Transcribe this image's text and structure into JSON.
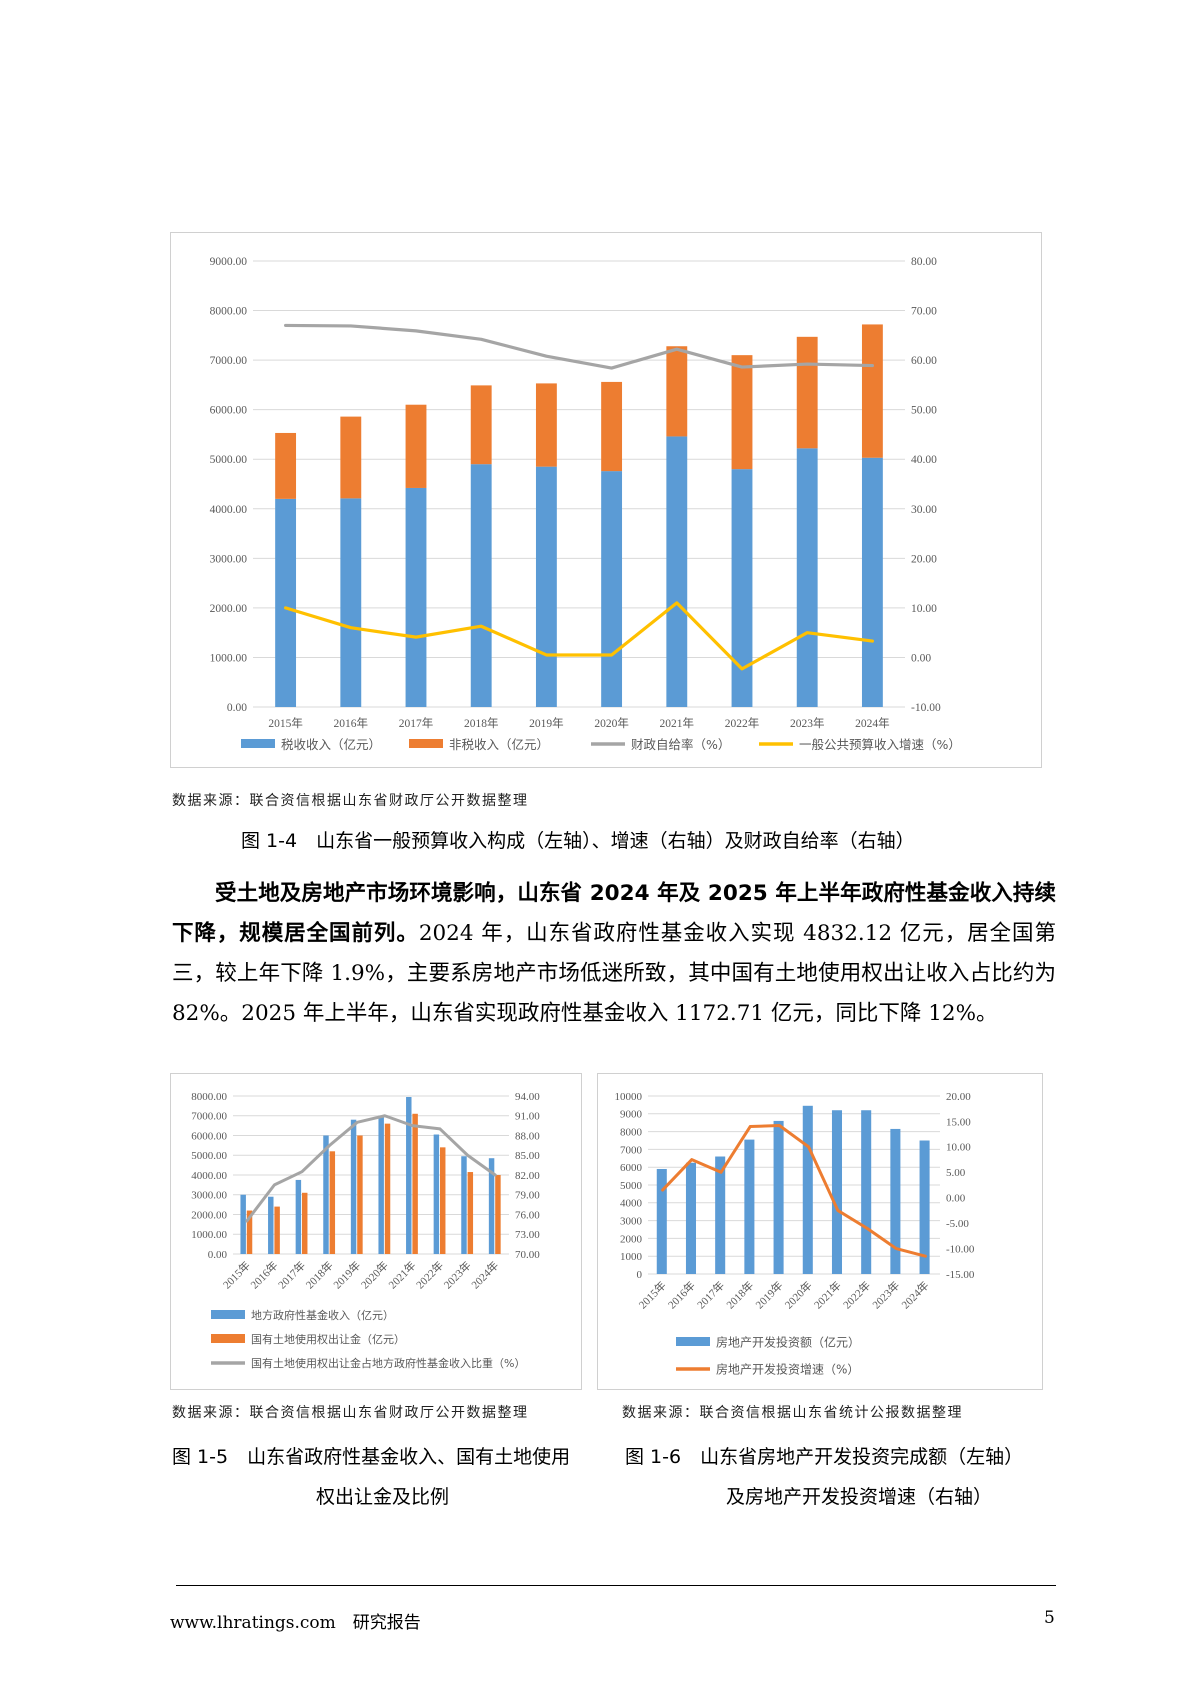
{
  "figure_1_4": {
    "caption": "图 1-4　山东省一般预算收入构成（左轴）、增速（右轴）及财政自给率（右轴）",
    "source": "数据来源：联合资信根据山东省财政厅公开数据整理"
  },
  "figure_1_5": {
    "caption_line1": "图 1-5　山东省政府性基金收入、国有土地使用",
    "caption_line2": "权出让金及比例",
    "source": "数据来源：联合资信根据山东省财政厅公开数据整理"
  },
  "figure_1_6": {
    "caption_line1": "图 1-6　山东省房地产开发投资完成额（左轴）",
    "caption_line2": "及房地产开发投资增速（右轴）",
    "source": "数据来源：联合资信根据山东省统计公报数据整理"
  },
  "paragraph": {
    "bold_lead": "受土地及房地产市场环境影响，山东省 2024 年及 2025 年上半年政府性基金收入持续下降，规模居全国前列。",
    "body": "2024 年，山东省政府性基金收入实现 4832.12 亿元，居全国第三，较上年下降 1.9%，主要系房地产市场低迷所致，其中国有土地使用权出让收入占比约为 82%。2025 年上半年，山东省实现政府性基金收入 1172.71 亿元，同比下降 12%。"
  },
  "footer": {
    "left": "www.lhratings.com　研究报告",
    "page_number": "5"
  },
  "chart_data": [
    {
      "id": "fig-1-4",
      "type": "bar",
      "stacked": true,
      "categories": [
        "2015年",
        "2016年",
        "2017年",
        "2018年",
        "2019年",
        "2020年",
        "2021年",
        "2022年",
        "2023年",
        "2024年"
      ],
      "series": [
        {
          "name": "税收收入（亿元）",
          "axis": "left",
          "kind": "bar",
          "color": "#5b9bd5",
          "values": [
            4200,
            4210,
            4420,
            4900,
            4850,
            4760,
            5460,
            4800,
            5220,
            5030
          ]
        },
        {
          "name": "非税收入（亿元）",
          "axis": "left",
          "kind": "bar",
          "color": "#ed7d31",
          "values": [
            1330,
            1650,
            1680,
            1590,
            1680,
            1800,
            1820,
            2300,
            2250,
            2690
          ]
        },
        {
          "name": "财政自给率（%）",
          "axis": "right",
          "kind": "line",
          "color": "#a5a5a5",
          "values": [
            67.0,
            66.9,
            65.9,
            64.2,
            60.8,
            58.4,
            62.2,
            58.6,
            59.2,
            58.9
          ]
        },
        {
          "name": "一般公共预算收入增速（%）",
          "axis": "right",
          "kind": "line",
          "color": "#ffc000",
          "values": [
            10.0,
            6.0,
            4.1,
            6.3,
            0.5,
            0.5,
            11.0,
            -2.3,
            5.0,
            3.3
          ]
        }
      ],
      "ylim_left": [
        0,
        9000
      ],
      "yticks_left": [
        "0.00",
        "1000.00",
        "2000.00",
        "3000.00",
        "4000.00",
        "5000.00",
        "6000.00",
        "7000.00",
        "8000.00",
        "9000.00"
      ],
      "ylim_right": [
        -10,
        80
      ],
      "yticks_right": [
        "-10.00",
        "0.00",
        "10.00",
        "20.00",
        "30.00",
        "40.00",
        "50.00",
        "60.00",
        "70.00",
        "80.00"
      ],
      "grid": true,
      "legend": "bottom"
    },
    {
      "id": "fig-1-5",
      "type": "bar",
      "categories": [
        "2015年",
        "2016年",
        "2017年",
        "2018年",
        "2019年",
        "2020年",
        "2021年",
        "2022年",
        "2023年",
        "2024年"
      ],
      "series": [
        {
          "name": "地方政府性基金收入（亿元）",
          "axis": "left",
          "kind": "bar",
          "color": "#5b9bd5",
          "values": [
            3000,
            2900,
            3750,
            6000,
            6800,
            7000,
            7950,
            6050,
            4950,
            4850
          ]
        },
        {
          "name": "国有土地使用权出让金（亿元）",
          "axis": "left",
          "kind": "bar",
          "color": "#ed7d31",
          "values": [
            2200,
            2400,
            3100,
            5200,
            6000,
            6600,
            7100,
            5400,
            4150,
            4000
          ]
        },
        {
          "name": "国有土地使用权出让金占地方政府性基金收入比重（%）",
          "axis": "right",
          "kind": "line",
          "color": "#a5a5a5",
          "values": [
            75.0,
            80.5,
            82.5,
            86.5,
            90.0,
            91.0,
            89.5,
            89.0,
            85.0,
            82.0
          ]
        }
      ],
      "ylim_left": [
        0,
        8000
      ],
      "yticks_left": [
        "0.00",
        "1000.00",
        "2000.00",
        "3000.00",
        "4000.00",
        "5000.00",
        "6000.00",
        "7000.00",
        "8000.00"
      ],
      "ylim_right": [
        70,
        94
      ],
      "yticks_right": [
        "70.00",
        "73.00",
        "76.00",
        "79.00",
        "82.00",
        "85.00",
        "88.00",
        "91.00",
        "94.00"
      ],
      "grid": true,
      "legend": "bottom"
    },
    {
      "id": "fig-1-6",
      "type": "bar",
      "categories": [
        "2015年",
        "2016年",
        "2017年",
        "2018年",
        "2019年",
        "2020年",
        "2021年",
        "2022年",
        "2023年",
        "2024年"
      ],
      "series": [
        {
          "name": "房地产开发投资额（亿元）",
          "axis": "left",
          "kind": "bar",
          "color": "#5b9bd5",
          "values": [
            5900,
            6250,
            6600,
            7550,
            8600,
            9450,
            9200,
            9200,
            8150,
            7500
          ]
        },
        {
          "name": "房地产开发投资增速（%）",
          "axis": "right",
          "kind": "line",
          "color": "#ed7d31",
          "values": [
            1.5,
            7.5,
            5.0,
            14.0,
            14.2,
            10.0,
            -2.5,
            -6.0,
            -10.0,
            -11.5
          ]
        }
      ],
      "ylim_left": [
        0,
        10000
      ],
      "yticks_left": [
        "0",
        "1000",
        "2000",
        "3000",
        "4000",
        "5000",
        "6000",
        "7000",
        "8000",
        "9000",
        "10000"
      ],
      "ylim_right": [
        -15,
        20
      ],
      "yticks_right": [
        "-15.00",
        "-10.00",
        "-5.00",
        "0.00",
        "5.00",
        "10.00",
        "15.00",
        "20.00"
      ],
      "grid": true,
      "legend": "bottom"
    }
  ]
}
